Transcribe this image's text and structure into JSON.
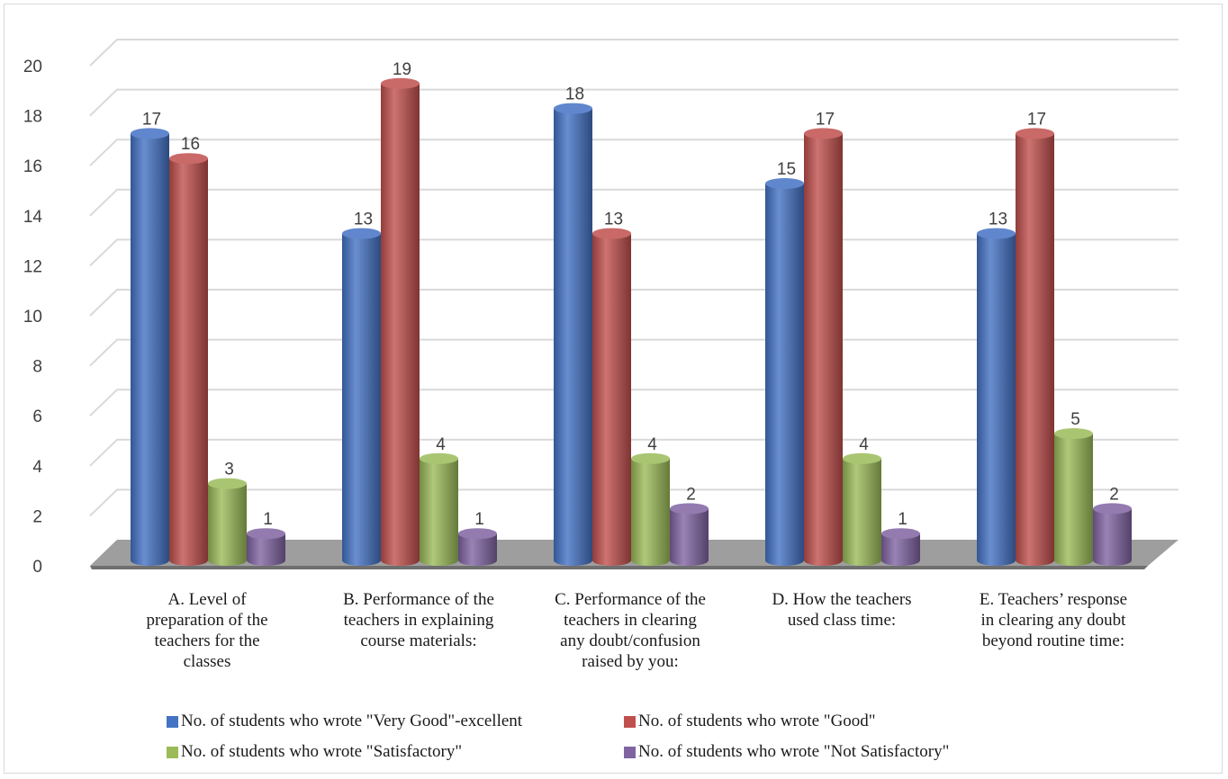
{
  "chart_data": {
    "type": "bar",
    "categories": [
      [
        "A. Level of",
        "preparation of the",
        "teachers for the",
        "classes"
      ],
      [
        "B. Performance of the",
        "teachers in explaining",
        "course materials:"
      ],
      [
        "C. Performance of the",
        "teachers in clearing",
        "any doubt/confusion",
        "raised by you:"
      ],
      [
        "D. How the teachers",
        "used class time:"
      ],
      [
        "E. Teachers’ response",
        "in clearing any doubt",
        "beyond routine time:"
      ]
    ],
    "series": [
      {
        "name": "No. of students who wrote \"Very Good\"-excellent",
        "values": [
          17,
          13,
          18,
          15,
          13
        ],
        "color": "#4472c4"
      },
      {
        "name": "No. of students who wrote \"Good\"",
        "values": [
          16,
          19,
          13,
          17,
          17
        ],
        "color": "#c0504d"
      },
      {
        "name": "No. of students who wrote \"Satisfactory\"",
        "values": [
          3,
          4,
          4,
          4,
          5
        ],
        "color": "#9bbb59"
      },
      {
        "name": "No. of students who wrote \"Not Satisfactory\"",
        "values": [
          1,
          1,
          2,
          1,
          2
        ],
        "color": "#8064a2"
      }
    ],
    "yticks": [
      0,
      2,
      4,
      6,
      8,
      10,
      12,
      14,
      16,
      18,
      20
    ],
    "ylim": [
      0,
      20
    ],
    "grid": true,
    "style": "3d-cylinder",
    "legend_position": "bottom"
  }
}
